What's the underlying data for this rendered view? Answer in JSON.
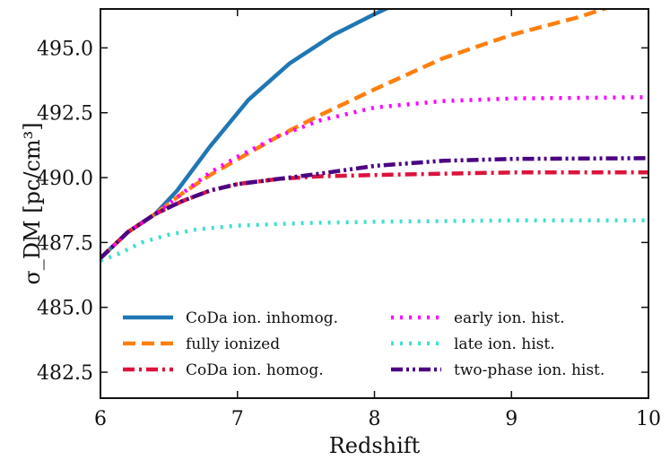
{
  "chart_data": {
    "type": "line",
    "title": "",
    "xlabel": "Redshift",
    "ylabel": "σ_DM [pc/cm³]",
    "xlim": [
      6,
      10
    ],
    "ylim": [
      481.5,
      496.5
    ],
    "x_ticks": [
      6,
      7,
      8,
      9,
      10
    ],
    "x_tick_labels": [
      "6",
      "7",
      "8",
      "9",
      "10"
    ],
    "y_ticks": [
      482.5,
      485.0,
      487.5,
      490.0,
      492.5,
      495.0
    ],
    "y_tick_labels": [
      "482.5",
      "485.0",
      "487.5",
      "490.0",
      "492.5",
      "495.0"
    ],
    "grid": false,
    "legend_position": "lower-center",
    "series": [
      {
        "name": "CoDa ion. inhomog.",
        "color": "#1f77b4",
        "style": "solid",
        "points": [
          [
            6.0,
            486.9
          ],
          [
            6.2,
            487.9
          ],
          [
            6.4,
            488.6
          ],
          [
            6.56,
            489.5
          ],
          [
            6.8,
            491.2
          ],
          [
            7.08,
            493.0
          ],
          [
            7.38,
            494.4
          ],
          [
            7.7,
            495.5
          ],
          [
            8.0,
            496.3
          ],
          [
            8.1,
            496.55
          ]
        ]
      },
      {
        "name": "fully ionized",
        "color": "#ff7f0e",
        "style": "dashed",
        "points": [
          [
            6.0,
            486.9
          ],
          [
            6.2,
            487.9
          ],
          [
            6.4,
            488.6
          ],
          [
            6.6,
            489.4
          ],
          [
            6.8,
            490.1
          ],
          [
            7.0,
            490.7
          ],
          [
            7.3,
            491.6
          ],
          [
            7.6,
            492.4
          ],
          [
            8.0,
            493.4
          ],
          [
            8.5,
            494.6
          ],
          [
            9.0,
            495.5
          ],
          [
            9.5,
            496.2
          ],
          [
            9.7,
            496.55
          ]
        ]
      },
      {
        "name": "CoDa ion. homog.",
        "color": "#dc143c",
        "style": "dashdot",
        "points": [
          [
            6.0,
            486.9
          ],
          [
            6.2,
            487.9
          ],
          [
            6.4,
            488.6
          ],
          [
            6.6,
            489.1
          ],
          [
            6.8,
            489.5
          ],
          [
            7.0,
            489.75
          ],
          [
            7.3,
            489.95
          ],
          [
            7.6,
            490.05
          ],
          [
            8.0,
            490.1
          ],
          [
            8.5,
            490.15
          ],
          [
            9.0,
            490.2
          ],
          [
            10.0,
            490.2
          ]
        ]
      },
      {
        "name": "early ion. hist.",
        "color": "#ff00ff",
        "style": "dotted",
        "points": [
          [
            6.0,
            486.9
          ],
          [
            6.2,
            487.9
          ],
          [
            6.4,
            488.6
          ],
          [
            6.6,
            489.4
          ],
          [
            6.8,
            490.2
          ],
          [
            7.0,
            490.8
          ],
          [
            7.3,
            491.6
          ],
          [
            7.6,
            492.2
          ],
          [
            8.0,
            492.7
          ],
          [
            8.5,
            492.95
          ],
          [
            9.0,
            493.05
          ],
          [
            10.0,
            493.1
          ]
        ]
      },
      {
        "name": "late ion. hist.",
        "color": "#40e0d0",
        "style": "dotted",
        "points": [
          [
            6.0,
            486.8
          ],
          [
            6.15,
            487.1
          ],
          [
            6.3,
            487.5
          ],
          [
            6.5,
            487.8
          ],
          [
            6.7,
            488.0
          ],
          [
            7.0,
            488.15
          ],
          [
            7.5,
            488.25
          ],
          [
            8.0,
            488.3
          ],
          [
            9.0,
            488.35
          ],
          [
            10.0,
            488.35
          ]
        ]
      },
      {
        "name": "two-phase ion. hist.",
        "color": "#4b0082",
        "style": "dashdotdot",
        "points": [
          [
            6.0,
            486.9
          ],
          [
            6.2,
            487.9
          ],
          [
            6.4,
            488.6
          ],
          [
            6.6,
            489.1
          ],
          [
            6.8,
            489.5
          ],
          [
            7.0,
            489.75
          ],
          [
            7.3,
            489.95
          ],
          [
            7.6,
            490.15
          ],
          [
            8.0,
            490.45
          ],
          [
            8.5,
            490.65
          ],
          [
            9.0,
            490.72
          ],
          [
            10.0,
            490.75
          ]
        ]
      }
    ]
  }
}
